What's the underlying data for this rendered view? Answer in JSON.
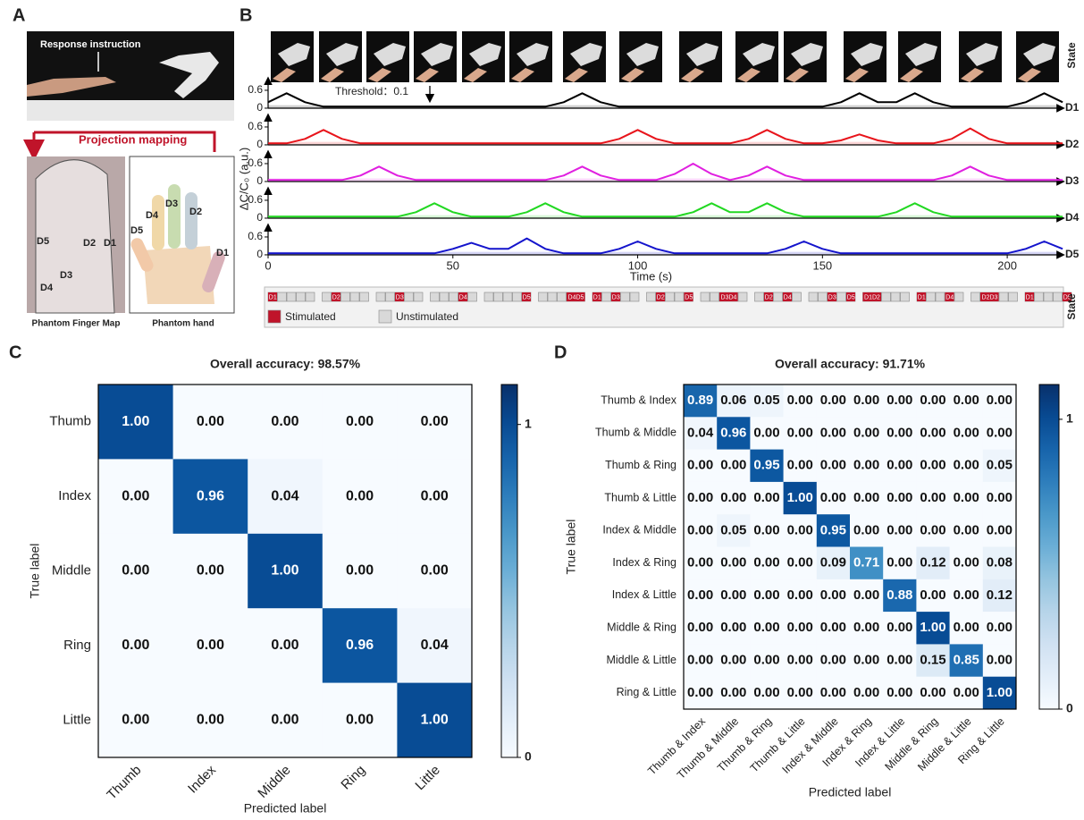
{
  "panel_labels": [
    "A",
    "B",
    "C",
    "D"
  ],
  "panel_a": {
    "instruction": "Response instruction",
    "mapping": "Projection mapping",
    "map_fingers": [
      "D5",
      "D2",
      "D1",
      "D3",
      "D4"
    ],
    "hand_fingers": [
      "D5",
      "D4",
      "D3",
      "D2",
      "D1"
    ],
    "map_caption": "Phantom Finger Map",
    "hand_caption": "Phantom hand"
  },
  "chart_data": [
    {
      "type": "line",
      "ylabel": "ΔC/C₀ (a.u.)",
      "xlabel": "Time (s)",
      "annotation": "Threshold：0.1",
      "threshold": 0.1,
      "xlim": [
        0,
        214
      ],
      "xticks": [
        0,
        50,
        100,
        150,
        200
      ],
      "ylim": [
        -0.1,
        0.8
      ],
      "yticks": [
        0,
        0.6
      ],
      "x": [
        0,
        5,
        10,
        15,
        20,
        25,
        30,
        35,
        40,
        45,
        50,
        55,
        60,
        65,
        70,
        75,
        80,
        85,
        90,
        95,
        100,
        105,
        110,
        115,
        120,
        125,
        130,
        135,
        140,
        145,
        150,
        155,
        160,
        165,
        170,
        175,
        180,
        185,
        190,
        195,
        200,
        205,
        210,
        215
      ],
      "series": [
        {
          "name": "D1",
          "color": "#000000",
          "values": [
            0.2,
            0.5,
            0.2,
            0.05,
            0.05,
            0.05,
            0.05,
            0.05,
            0.05,
            0.05,
            0.05,
            0.05,
            0.05,
            0.05,
            0.05,
            0.05,
            0.2,
            0.5,
            0.2,
            0.05,
            0.05,
            0.05,
            0.05,
            0.05,
            0.05,
            0.05,
            0.05,
            0.05,
            0.05,
            0.05,
            0.05,
            0.2,
            0.5,
            0.2,
            0.2,
            0.5,
            0.2,
            0.05,
            0.05,
            0.05,
            0.05,
            0.2,
            0.5,
            0.2
          ]
        },
        {
          "name": "D2",
          "color": "#e8141b",
          "values": [
            0.05,
            0.05,
            0.2,
            0.5,
            0.2,
            0.05,
            0.05,
            0.05,
            0.05,
            0.05,
            0.05,
            0.05,
            0.05,
            0.05,
            0.05,
            0.05,
            0.05,
            0.05,
            0.05,
            0.2,
            0.5,
            0.2,
            0.05,
            0.05,
            0.05,
            0.05,
            0.2,
            0.5,
            0.2,
            0.05,
            0.05,
            0.15,
            0.35,
            0.15,
            0.05,
            0.05,
            0.05,
            0.2,
            0.55,
            0.2,
            0.05,
            0.05,
            0.05,
            0.05
          ]
        },
        {
          "name": "D3",
          "color": "#e020e0",
          "values": [
            0.05,
            0.05,
            0.05,
            0.05,
            0.05,
            0.2,
            0.5,
            0.2,
            0.05,
            0.05,
            0.05,
            0.05,
            0.05,
            0.05,
            0.05,
            0.05,
            0.2,
            0.5,
            0.2,
            0.05,
            0.05,
            0.05,
            0.25,
            0.6,
            0.25,
            0.05,
            0.2,
            0.5,
            0.2,
            0.05,
            0.05,
            0.05,
            0.05,
            0.05,
            0.05,
            0.05,
            0.05,
            0.2,
            0.5,
            0.2,
            0.05,
            0.05,
            0.05,
            0.05
          ]
        },
        {
          "name": "D4",
          "color": "#22d822",
          "values": [
            0.05,
            0.05,
            0.05,
            0.05,
            0.05,
            0.05,
            0.05,
            0.05,
            0.2,
            0.5,
            0.2,
            0.05,
            0.05,
            0.05,
            0.2,
            0.5,
            0.2,
            0.05,
            0.05,
            0.05,
            0.05,
            0.05,
            0.05,
            0.2,
            0.5,
            0.2,
            0.2,
            0.5,
            0.2,
            0.05,
            0.05,
            0.05,
            0.05,
            0.05,
            0.2,
            0.5,
            0.2,
            0.05,
            0.05,
            0.05,
            0.05,
            0.05,
            0.05,
            0.05
          ]
        },
        {
          "name": "D5",
          "color": "#1414cc",
          "values": [
            0.05,
            0.05,
            0.05,
            0.05,
            0.05,
            0.05,
            0.05,
            0.05,
            0.05,
            0.05,
            0.2,
            0.4,
            0.2,
            0.2,
            0.55,
            0.2,
            0.05,
            0.05,
            0.05,
            0.2,
            0.45,
            0.2,
            0.05,
            0.05,
            0.05,
            0.05,
            0.05,
            0.05,
            0.2,
            0.45,
            0.2,
            0.05,
            0.05,
            0.05,
            0.05,
            0.05,
            0.05,
            0.05,
            0.05,
            0.05,
            0.05,
            0.2,
            0.45,
            0.2
          ]
        }
      ],
      "state_label": "State",
      "states": [
        [
          "D1"
        ],
        [
          "D2"
        ],
        [
          "D3"
        ],
        [
          "D4"
        ],
        [
          "D5"
        ],
        [
          "D4D5"
        ],
        [
          "D1",
          "D3"
        ],
        [
          "D2",
          "D5"
        ],
        [
          "D3D4"
        ],
        [
          "D2",
          "D4"
        ],
        [
          "D3",
          "D5"
        ],
        [
          "D1D2"
        ],
        [
          "D1",
          "D4"
        ],
        [
          "D2D3"
        ],
        [
          "D1",
          "D5"
        ]
      ],
      "state_legend": [
        {
          "name": "Stimulated",
          "color": "#c0142a"
        },
        {
          "name": "Unstimulated",
          "color": "#d9d9d9"
        }
      ]
    },
    {
      "type": "heatmap",
      "title": "Overall accuracy: 98.57%",
      "xlabel": "Predicted label",
      "ylabel": "True label",
      "categories": [
        "Thumb",
        "Index",
        "Middle",
        "Ring",
        "Little"
      ],
      "zlim": [
        0,
        1.12
      ],
      "zticks": [
        0,
        1
      ],
      "values": [
        [
          1,
          0,
          0,
          0,
          0
        ],
        [
          0,
          0.96,
          0.04,
          0,
          0
        ],
        [
          0,
          0,
          1,
          0,
          0
        ],
        [
          0,
          0,
          0,
          0.96,
          0.04
        ],
        [
          0,
          0,
          0,
          0,
          1
        ]
      ],
      "value_labels": [
        [
          "1.00",
          "0.00",
          "0.00",
          "0.00",
          "0.00"
        ],
        [
          "0.00",
          "0.96",
          "0.04",
          "0.00",
          "0.00"
        ],
        [
          "0.00",
          "0.00",
          "1.00",
          "0.00",
          "0.00"
        ],
        [
          "0.00",
          "0.00",
          "0.00",
          "0.96",
          "0.04"
        ],
        [
          "0.00",
          "0.00",
          "0.00",
          "0.00",
          "1.00"
        ]
      ]
    },
    {
      "type": "heatmap",
      "title": "Overall accuracy: 91.71%",
      "xlabel": "Predicted label",
      "ylabel": "True label",
      "categories": [
        "Thumb & Index",
        "Thumb & Middle",
        "Thumb & Ring",
        "Thumb & Little",
        "Index & Middle",
        "Index & Ring",
        "Index & Little",
        "Middle & Ring",
        "Middle & Little",
        "Ring & Little"
      ],
      "zlim": [
        0,
        1.12
      ],
      "zticks": [
        0,
        1
      ],
      "values": [
        [
          0.89,
          0.06,
          0.05,
          0,
          0,
          0,
          0,
          0,
          0,
          0
        ],
        [
          0.04,
          0.96,
          0,
          0,
          0,
          0,
          0,
          0,
          0,
          0
        ],
        [
          0,
          0,
          0.95,
          0,
          0,
          0,
          0,
          0,
          0,
          0.05
        ],
        [
          0,
          0,
          0,
          1,
          0,
          0,
          0,
          0,
          0,
          0
        ],
        [
          0,
          0.05,
          0,
          0,
          0.95,
          0,
          0,
          0,
          0,
          0
        ],
        [
          0,
          0,
          0,
          0,
          0.09,
          0.71,
          0,
          0.12,
          0,
          0.08
        ],
        [
          0,
          0,
          0,
          0,
          0,
          0,
          0.88,
          0,
          0,
          0.12
        ],
        [
          0,
          0,
          0,
          0,
          0,
          0,
          0,
          1,
          0,
          0
        ],
        [
          0,
          0,
          0,
          0,
          0,
          0,
          0,
          0.15,
          0.85,
          0
        ],
        [
          0,
          0,
          0,
          0,
          0,
          0,
          0,
          0,
          0,
          1
        ]
      ],
      "value_labels": [
        [
          "0.89",
          "0.06",
          "0.05",
          "0.00",
          "0.00",
          "0.00",
          "0.00",
          "0.00",
          "0.00",
          "0.00"
        ],
        [
          "0.04",
          "0.96",
          "0.00",
          "0.00",
          "0.00",
          "0.00",
          "0.00",
          "0.00",
          "0.00",
          "0.00"
        ],
        [
          "0.00",
          "0.00",
          "0.95",
          "0.00",
          "0.00",
          "0.00",
          "0.00",
          "0.00",
          "0.00",
          "0.05"
        ],
        [
          "0.00",
          "0.00",
          "0.00",
          "1.00",
          "0.00",
          "0.00",
          "0.00",
          "0.00",
          "0.00",
          "0.00"
        ],
        [
          "0.00",
          "0.05",
          "0.00",
          "0.00",
          "0.95",
          "0.00",
          "0.00",
          "0.00",
          "0.00",
          "0.00"
        ],
        [
          "0.00",
          "0.00",
          "0.00",
          "0.00",
          "0.09",
          "0.71",
          "0.00",
          "0.12",
          "0.00",
          "0.08"
        ],
        [
          "0.00",
          "0.00",
          "0.00",
          "0.00",
          "0.00",
          "0.00",
          "0.88",
          "0.00",
          "0.00",
          "0.12"
        ],
        [
          "0.00",
          "0.00",
          "0.00",
          "0.00",
          "0.00",
          "0.00",
          "0.00",
          "1.00",
          "0.00",
          "0.00"
        ],
        [
          "0.00",
          "0.00",
          "0.00",
          "0.00",
          "0.00",
          "0.00",
          "0.00",
          "0.15",
          "0.85",
          "0.00"
        ],
        [
          "0.00",
          "0.00",
          "0.00",
          "0.00",
          "0.00",
          "0.00",
          "0.00",
          "0.00",
          "0.00",
          "1.00"
        ]
      ]
    }
  ]
}
